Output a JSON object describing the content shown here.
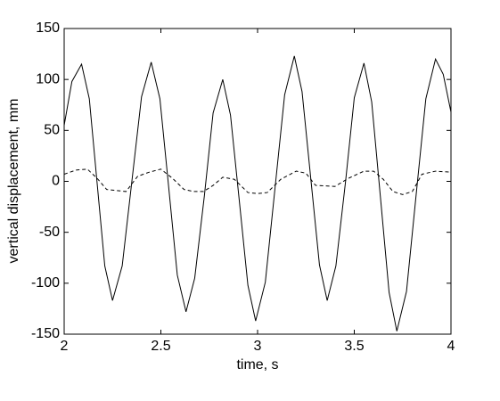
{
  "chart_data": {
    "type": "line",
    "xlabel": "time, s",
    "ylabel": "vertical displacement, mm",
    "xlim": [
      2,
      4
    ],
    "xticks": [
      2,
      2.5,
      3,
      3.5,
      4
    ],
    "ylim": [
      -150,
      150
    ],
    "yticks": [
      -150,
      -100,
      -50,
      0,
      50,
      100,
      150
    ],
    "grid": false,
    "series": [
      {
        "color": "#000000",
        "linestyle": "solid",
        "x": [
          2.0,
          2.04,
          2.09,
          2.13,
          2.17,
          2.21,
          2.25,
          2.3,
          2.35,
          2.4,
          2.45,
          2.495,
          2.54,
          2.585,
          2.63,
          2.675,
          2.725,
          2.77,
          2.82,
          2.86,
          2.905,
          2.95,
          2.99,
          3.04,
          3.09,
          3.14,
          3.19,
          3.23,
          3.275,
          3.32,
          3.36,
          3.405,
          3.455,
          3.5,
          3.55,
          3.59,
          3.635,
          3.68,
          3.72,
          3.77,
          3.82,
          3.87,
          3.92,
          3.96,
          4.0
        ],
        "values": [
          55,
          98,
          115,
          81,
          -1,
          -83,
          -117,
          -83,
          0,
          83,
          117,
          81,
          -5,
          -92,
          -128,
          -95,
          -14,
          67,
          100,
          65,
          -18,
          -102,
          -137,
          -99,
          -7,
          85,
          123,
          88,
          3,
          -82,
          -117,
          -83,
          0,
          82,
          116,
          78,
          -15,
          -109,
          -147,
          -108,
          -13,
          81,
          120,
          105,
          68
        ]
      },
      {
        "color": "#000000",
        "linestyle": "dashed",
        "x": [
          2.0,
          2.06,
          2.12,
          2.17,
          2.22,
          2.27,
          2.32,
          2.38,
          2.44,
          2.5,
          2.56,
          2.62,
          2.67,
          2.72,
          2.77,
          2.82,
          2.88,
          2.95,
          3.0,
          3.05,
          3.12,
          3.2,
          3.25,
          3.3,
          3.4,
          3.47,
          3.55,
          3.6,
          3.65,
          3.7,
          3.75,
          3.8,
          3.85,
          3.92,
          4.0
        ],
        "values": [
          7,
          11,
          12,
          3,
          -8,
          -9,
          -10,
          5,
          9,
          12,
          3,
          -8,
          -10,
          -10,
          -4,
          4,
          2,
          -11,
          -12,
          -11,
          2,
          10,
          8,
          -4,
          -5,
          3,
          10,
          10,
          2,
          -10,
          -13,
          -10,
          7,
          10,
          9
        ]
      }
    ]
  }
}
